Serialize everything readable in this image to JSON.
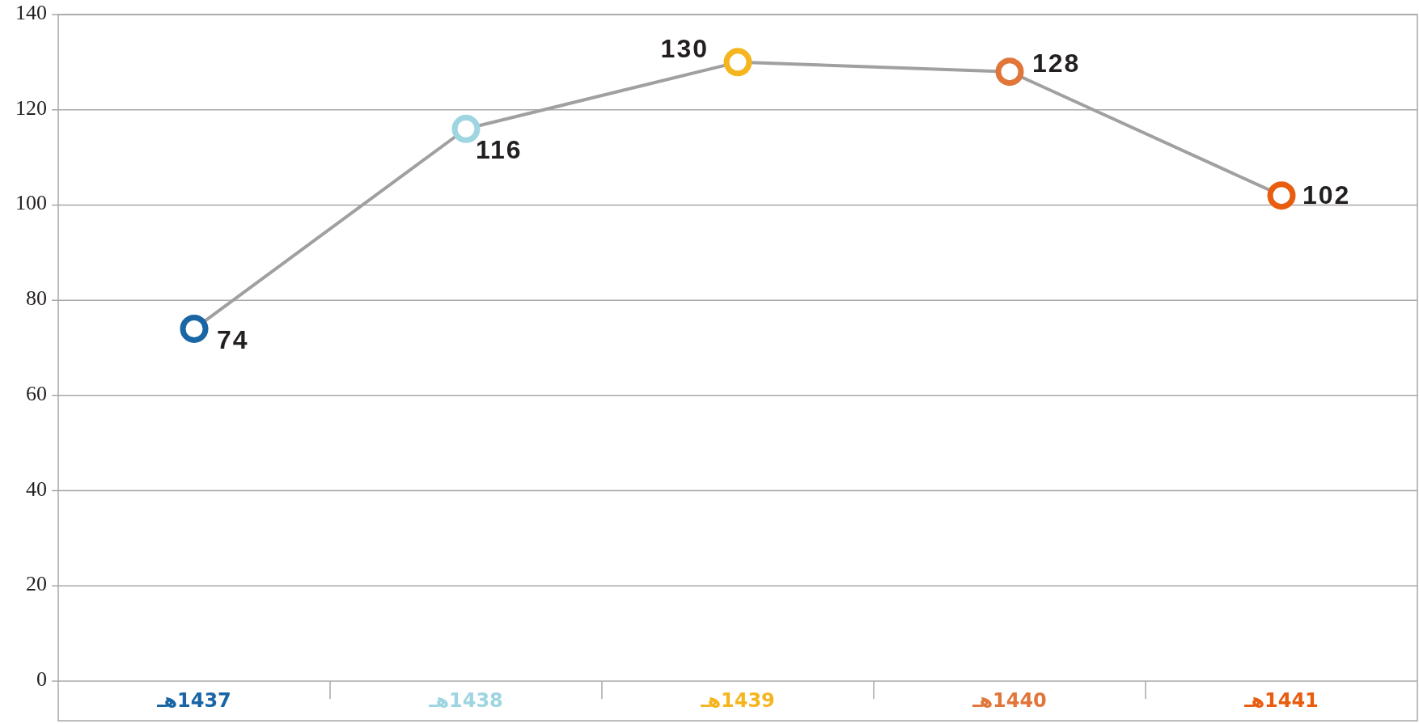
{
  "chart_data": {
    "type": "line",
    "categories": [
      "1437هـ",
      "1438هـ",
      "1439هـ",
      "1440هـ",
      "1441هـ"
    ],
    "series": [
      {
        "color": "#a0a0a0",
        "colors": [
          "#1a65a4",
          "#9fd5e0",
          "#f5b51e",
          "#e0763a",
          "#e85d10"
        ],
        "values": [
          74,
          116,
          130,
          128,
          102
        ]
      }
    ],
    "ylim": [
      0,
      140
    ],
    "yticks": [
      0,
      20,
      40,
      60,
      80,
      100,
      120,
      140
    ],
    "grid": "y",
    "marker": "circle",
    "line_style": "solid",
    "data_labels": true
  }
}
